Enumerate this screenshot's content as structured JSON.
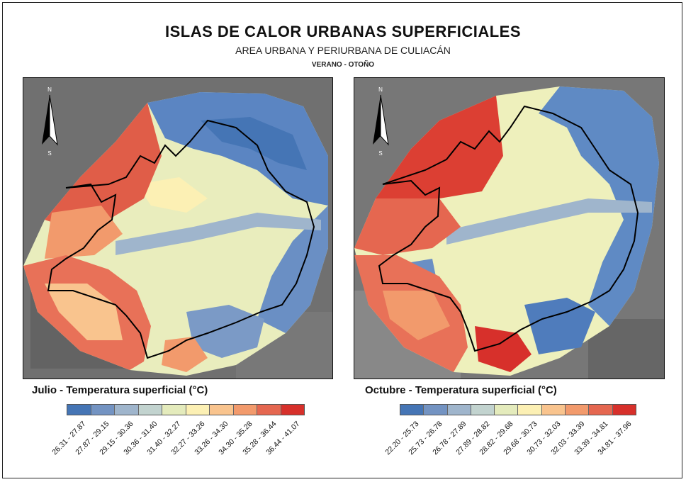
{
  "map": {
    "title": "ISLAS DE CALOR URBANAS SUPERFICIALES",
    "subtitle": "AREA URBANA Y PERIURBANA DE CULIACÁN",
    "season": "VERANO - OTOÑO"
  },
  "north_arrow": {
    "n_label": "N",
    "s_label": "S"
  },
  "panels": [
    {
      "legend_title": "Julio - Temperatura superficial (°C)",
      "classes": [
        "26.31 - 27.87",
        "27.87 - 29.15",
        "29.15 - 30.36",
        "30.36 - 31.40",
        "31.40 - 32.27",
        "32.27 - 33.26",
        "33.26 - 34.30",
        "34.30 - 35.28",
        "35.28 - 36.44",
        "36.44 - 41.07"
      ]
    },
    {
      "legend_title": "Octubre - Temperatura superficial (°C)",
      "classes": [
        "22.20 - 25.73",
        "25.73 - 26.78",
        "26.78 - 27.89",
        "27.89 - 28.82",
        "28.82 - 29.68",
        "29.68 - 30.73",
        "30.73 - 32.03",
        "32.03 - 33.39",
        "33.39 - 34.81",
        "34.81 - 37.96"
      ]
    }
  ],
  "colors": {
    "ramp": [
      "#4575b5",
      "#7393c2",
      "#9fb5cc",
      "#c2d3cf",
      "#e4ebbc",
      "#fcf0b4",
      "#f9c48e",
      "#f29a6c",
      "#e56750",
      "#d7302b"
    ],
    "background": "#6d6d6d",
    "boundary": "#000000"
  }
}
